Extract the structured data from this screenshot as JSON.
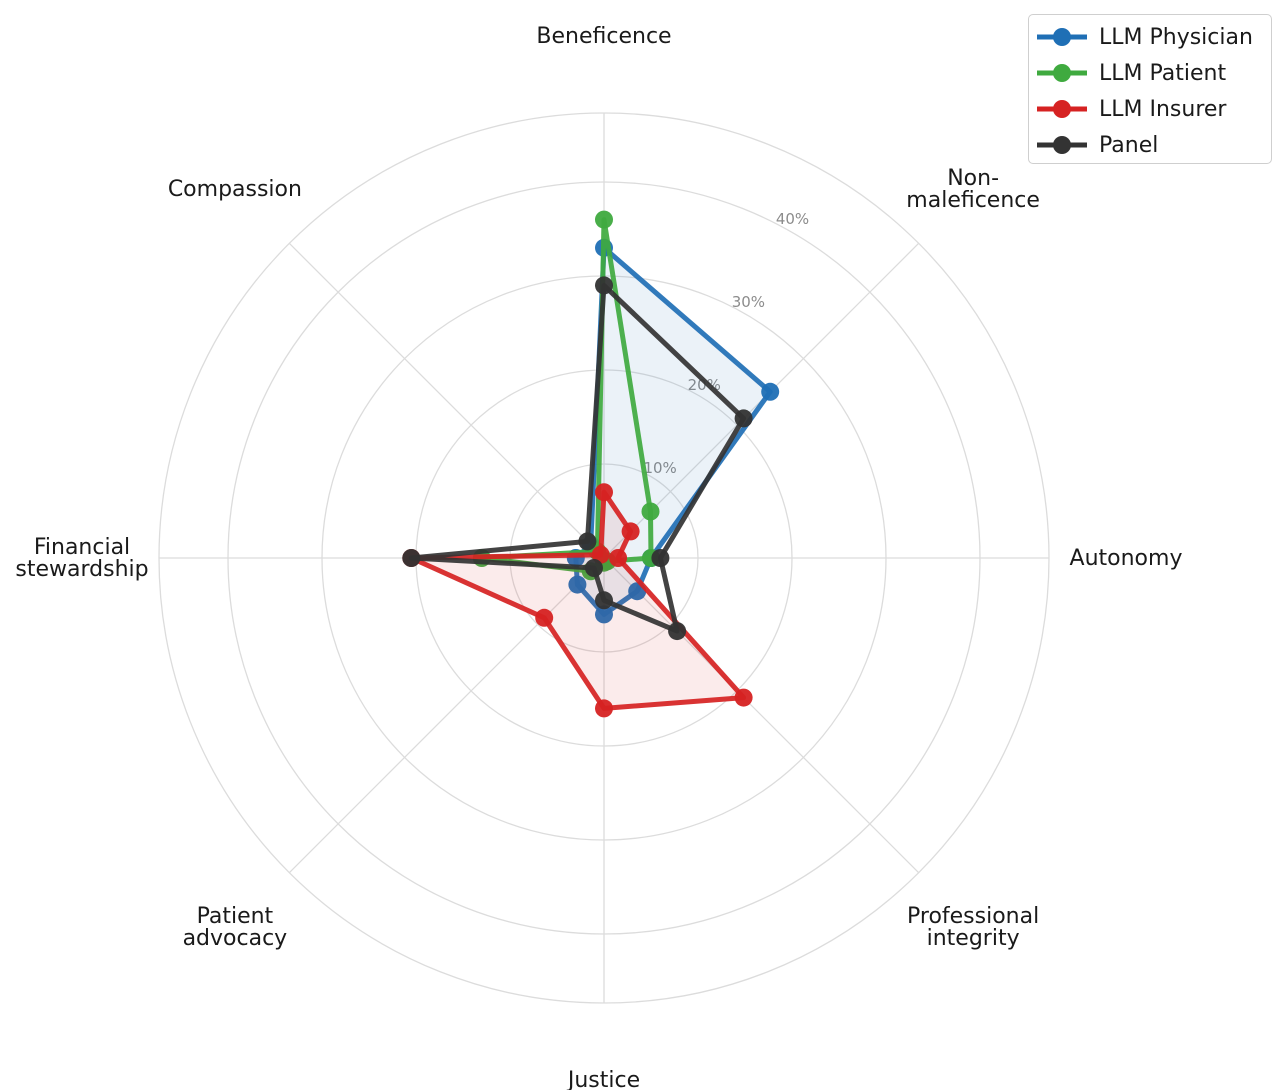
{
  "chart_data": {
    "type": "radar",
    "categories": [
      "Beneficence",
      "Non-\nmaleficence",
      "Autonomy",
      "Professional\nintegrity",
      "Justice",
      "Patient\nadvocacy",
      "Financial\nstewardship",
      "Compassion"
    ],
    "rlim": [
      0,
      45
    ],
    "rticks": [
      10,
      20,
      30,
      40
    ],
    "rtick_labels": [
      "10%",
      "20%",
      "30%",
      "40%"
    ],
    "grid": true,
    "legend_position": "top-right",
    "series": [
      {
        "name": "LLM Physician",
        "color": "#1f6fb5",
        "fill": true,
        "values": [
          33,
          25,
          5,
          5,
          6,
          4,
          3,
          2
        ]
      },
      {
        "name": "LLM Patient",
        "color": "#3faa3f",
        "fill": false,
        "values": [
          36,
          7,
          5,
          0.5,
          0.5,
          2,
          13,
          1
        ]
      },
      {
        "name": "LLM Insurer",
        "color": "#d62222",
        "fill": true,
        "values": [
          7,
          4,
          1.5,
          21,
          16,
          9,
          20.5,
          0.5
        ]
      },
      {
        "name": "Panel",
        "color": "#333333",
        "fill": false,
        "values": [
          29,
          21,
          6,
          11,
          4.5,
          1.5,
          20.5,
          2.5
        ]
      }
    ]
  }
}
